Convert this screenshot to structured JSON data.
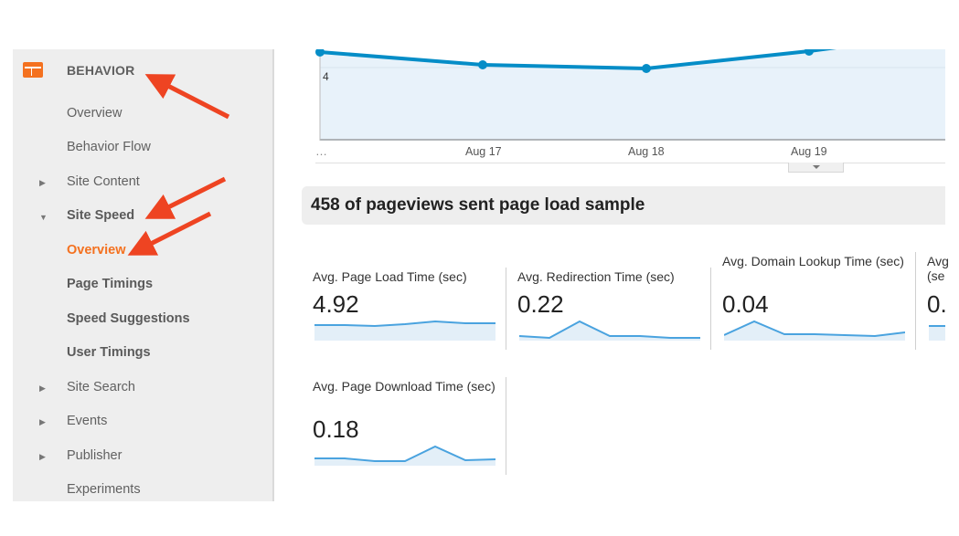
{
  "sidebar": {
    "section_title": "BEHAVIOR",
    "section_icon": "behavior-icon",
    "items": [
      {
        "label": "Overview",
        "caret": ""
      },
      {
        "label": "Behavior Flow",
        "caret": ""
      },
      {
        "label": "Site Content",
        "caret": "▶"
      },
      {
        "label": "Site Speed",
        "caret": "▼"
      },
      {
        "label": "Overview",
        "caret": ""
      },
      {
        "label": "Page Timings",
        "caret": ""
      },
      {
        "label": "Speed Suggestions",
        "caret": ""
      },
      {
        "label": "User Timings",
        "caret": ""
      },
      {
        "label": "Site Search",
        "caret": "▶"
      },
      {
        "label": "Events",
        "caret": "▶"
      },
      {
        "label": "Publisher",
        "caret": "▶"
      },
      {
        "label": "Experiments",
        "caret": ""
      }
    ],
    "active_color": "#f4711f"
  },
  "chart": {
    "y_tick": "4",
    "ellipsis": "…",
    "x_labels": [
      "Aug 17",
      "Aug 18",
      "Aug 19"
    ],
    "line_color": "#058dc7",
    "fill_color": "#e8f2fa"
  },
  "sample": {
    "title": "458 of pageviews sent page load sample"
  },
  "metrics": [
    {
      "label": "Avg. Page Load Time (sec)",
      "value": "4.92",
      "spark": [
        0.3,
        0.3,
        0.25,
        0.5,
        0.8,
        0.55,
        0.6
      ]
    },
    {
      "label": "Avg. Redirection Time (sec)",
      "value": "0.22",
      "spark": [
        0.2,
        0.1,
        0.9,
        0.2,
        0.2,
        0.15,
        0.1
      ]
    },
    {
      "label": "Avg. Domain Lookup Time (sec)",
      "value": "0.04",
      "spark": [
        0.2,
        0.85,
        0.2,
        0.25,
        0.2,
        0.15,
        0.4
      ]
    },
    {
      "label": "Avg",
      "label2": "(se",
      "value": "0.",
      "spark": [
        0.3
      ]
    },
    {
      "label": "Avg. Page Download Time (sec)",
      "value": "0.18",
      "spark": [
        0.4,
        0.4,
        0.25,
        0.3,
        0.95,
        0.3,
        0.4
      ]
    }
  ],
  "annotation_color": "#ee4422"
}
